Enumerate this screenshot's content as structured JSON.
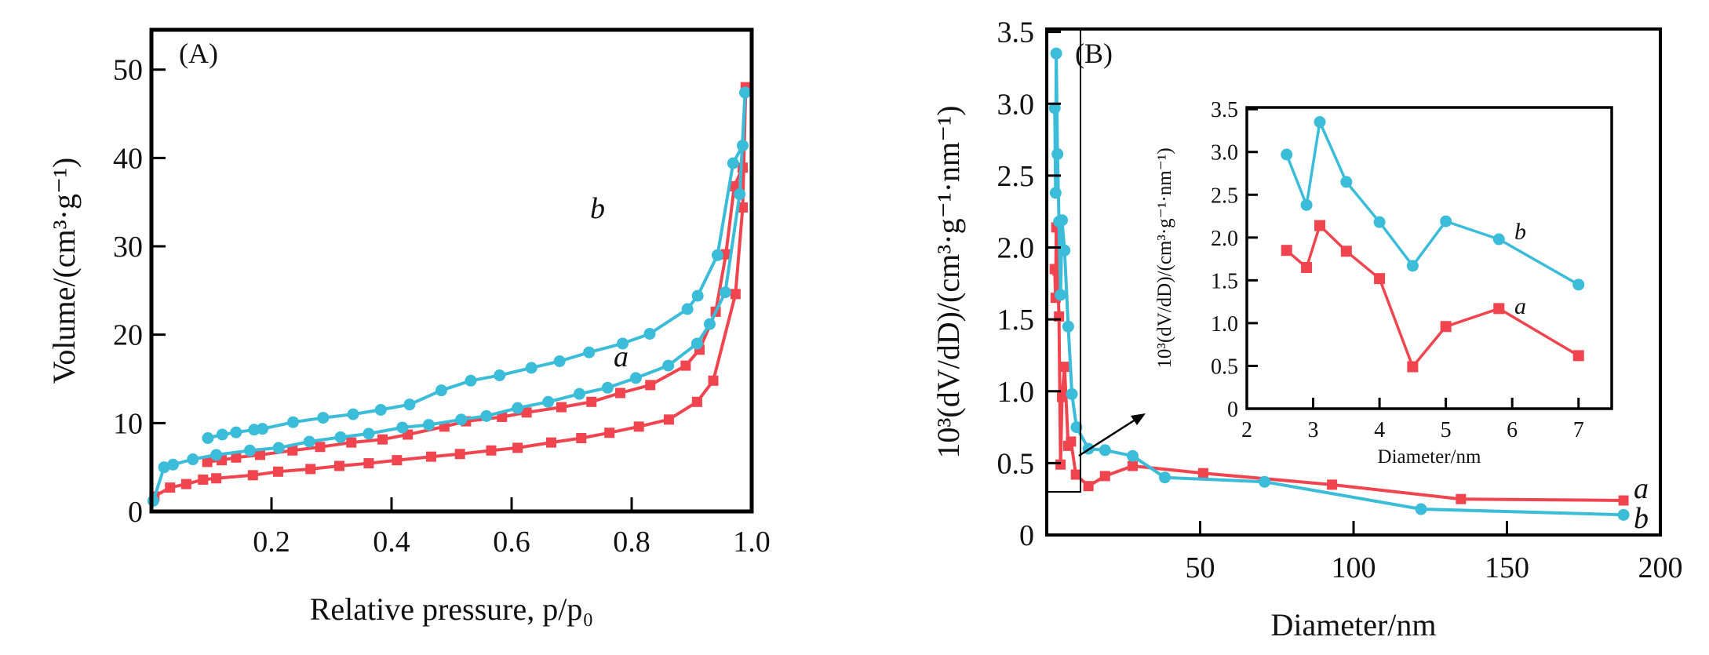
{
  "colors": {
    "a": "#f0444f",
    "b": "#3bbcd8",
    "axis": "#000000"
  },
  "chart_data": [
    {
      "panel_label": "(A)",
      "type": "line",
      "xlabel": "Relative pressure, p/p₀",
      "ylabel": "Volume/(cm³·g⁻¹)",
      "xlim": [
        0,
        1.0
      ],
      "ylim": [
        0,
        54.5
      ],
      "xticks": [
        "0.2",
        "0.4",
        "0.6",
        "0.8",
        "1.0"
      ],
      "xtick_values": [
        0.2,
        0.4,
        0.6,
        0.8,
        1.0
      ],
      "yticks": [
        "0",
        "10",
        "20",
        "30",
        "40",
        "50"
      ],
      "ytick_values": [
        0,
        10,
        20,
        30,
        40,
        50
      ],
      "grid": false,
      "curve_labels": {
        "a": "a",
        "b": "b"
      },
      "series": [
        {
          "id": "a",
          "marker": "square",
          "x": [
            0.005,
            0.031,
            0.058,
            0.086,
            0.108,
            0.169,
            0.211,
            0.265,
            0.313,
            0.362,
            0.409,
            0.466,
            0.514,
            0.566,
            0.61,
            0.666,
            0.716,
            0.763,
            0.812,
            0.862,
            0.909,
            0.936,
            0.973,
            0.985,
            0.99
          ],
          "y": [
            1.7,
            2.7,
            3.1,
            3.6,
            3.75,
            4.1,
            4.5,
            4.8,
            5.15,
            5.45,
            5.8,
            6.2,
            6.5,
            6.9,
            7.2,
            7.8,
            8.3,
            8.9,
            9.6,
            10.4,
            12.4,
            14.8,
            24.6,
            34.4,
            48.0
          ]
        },
        {
          "id": "a",
          "marker": "square",
          "x": [
            0.093,
            0.117,
            0.141,
            0.181,
            0.235,
            0.281,
            0.333,
            0.385,
            0.427,
            0.488,
            0.524,
            0.584,
            0.625,
            0.683,
            0.733,
            0.781,
            0.831,
            0.89,
            0.913,
            0.94,
            0.957,
            0.971,
            0.985,
            0.99
          ],
          "y": [
            5.6,
            5.8,
            6.1,
            6.4,
            6.9,
            7.3,
            7.8,
            8.15,
            8.7,
            9.6,
            10.2,
            10.7,
            11.2,
            11.8,
            12.4,
            13.4,
            14.3,
            16.5,
            18.3,
            22.6,
            29.1,
            36.8,
            38.9,
            48.0
          ]
        },
        {
          "id": "b",
          "marker": "circle",
          "x": [
            0.003,
            0.021,
            0.036,
            0.069,
            0.108,
            0.164,
            0.212,
            0.263,
            0.315,
            0.362,
            0.418,
            0.462,
            0.516,
            0.558,
            0.61,
            0.661,
            0.713,
            0.76,
            0.807,
            0.861,
            0.909,
            0.93,
            0.956,
            0.98,
            0.989
          ],
          "y": [
            1.2,
            5.0,
            5.3,
            5.9,
            6.4,
            6.9,
            7.2,
            7.9,
            8.4,
            8.8,
            9.5,
            9.8,
            10.4,
            10.8,
            11.7,
            12.4,
            13.3,
            14.0,
            15.1,
            16.5,
            19.0,
            21.2,
            24.8,
            35.9,
            47.4
          ]
        },
        {
          "id": "b",
          "marker": "circle",
          "x": [
            0.094,
            0.118,
            0.141,
            0.171,
            0.185,
            0.236,
            0.286,
            0.336,
            0.382,
            0.43,
            0.483,
            0.532,
            0.58,
            0.633,
            0.68,
            0.729,
            0.785,
            0.83,
            0.893,
            0.91,
            0.943,
            0.969,
            0.985,
            0.989
          ],
          "y": [
            8.3,
            8.7,
            8.95,
            9.25,
            9.35,
            10.1,
            10.6,
            11.0,
            11.5,
            12.1,
            13.7,
            14.8,
            15.4,
            16.25,
            17.0,
            18.0,
            19.0,
            20.1,
            22.9,
            24.4,
            29.0,
            39.4,
            41.4,
            47.4
          ]
        }
      ]
    },
    {
      "panel_label": "(B)",
      "type": "line",
      "xlabel": "Diameter/nm",
      "ylabel": "10³(dV/dD)/(cm³·g⁻¹·nm⁻¹)",
      "xlim": [
        0,
        200
      ],
      "ylim": [
        0,
        3.52
      ],
      "xticks": [
        "50",
        "100",
        "150",
        "200"
      ],
      "xtick_values": [
        50,
        100,
        150,
        200
      ],
      "yticks": [
        "0",
        "0.5",
        "1.0",
        "1.5",
        "2.0",
        "2.5",
        "3.0",
        "3.5"
      ],
      "ytick_values": [
        0,
        0.5,
        1.0,
        1.5,
        2.0,
        2.5,
        3.0,
        3.5
      ],
      "grid": false,
      "curve_labels": {
        "a": "a",
        "b": "b"
      },
      "zoom_box": {
        "x": [
          0,
          11
        ],
        "y": [
          0.3,
          3.52
        ]
      },
      "series": [
        {
          "id": "a",
          "marker": "square",
          "x": [
            2.6,
            2.9,
            3.1,
            3.5,
            4.0,
            4.5,
            5.0,
            5.8,
            7.0,
            7.9,
            9.5,
            13.6,
            19,
            28,
            51,
            93,
            135,
            188
          ],
          "y": [
            1.85,
            1.65,
            2.14,
            1.84,
            1.52,
            0.49,
            0.96,
            1.17,
            0.62,
            0.65,
            0.42,
            0.34,
            0.41,
            0.48,
            0.43,
            0.35,
            0.25,
            0.24
          ]
        },
        {
          "id": "b",
          "marker": "circle",
          "x": [
            2.6,
            2.9,
            3.1,
            3.5,
            4.0,
            4.5,
            5.0,
            5.8,
            7.0,
            8.2,
            9.7,
            13.6,
            19,
            28,
            38.5,
            71,
            122,
            188
          ],
          "y": [
            2.97,
            2.38,
            3.35,
            2.65,
            2.18,
            1.67,
            2.19,
            1.98,
            1.45,
            0.98,
            0.75,
            0.6,
            0.59,
            0.55,
            0.4,
            0.37,
            0.18,
            0.14
          ]
        }
      ]
    },
    {
      "panel_label": "",
      "type": "line",
      "inset_of": "(B)",
      "xlabel": "Diameter/nm",
      "ylabel": "10³(dV/dD)/(cm³·g⁻¹·nm⁻¹)",
      "xlim": [
        2,
        7.5
      ],
      "ylim": [
        0,
        3.52
      ],
      "xticks": [
        "2",
        "3",
        "4",
        "5",
        "6",
        "7"
      ],
      "xtick_values": [
        2,
        3,
        4,
        5,
        6,
        7
      ],
      "yticks": [
        "0",
        "0.5",
        "1.0",
        "1.5",
        "2.0",
        "2.5",
        "3.0",
        "3.5"
      ],
      "ytick_values": [
        0,
        0.5,
        1.0,
        1.5,
        2.0,
        2.5,
        3.0,
        3.5
      ],
      "grid": false,
      "curve_labels": {
        "a": "a",
        "b": "b"
      },
      "series": [
        {
          "id": "a",
          "marker": "square",
          "x": [
            2.6,
            2.9,
            3.1,
            3.5,
            4.0,
            4.5,
            5.0,
            5.8,
            7.0
          ],
          "y": [
            1.85,
            1.65,
            2.14,
            1.84,
            1.52,
            0.49,
            0.96,
            1.17,
            0.62
          ]
        },
        {
          "id": "b",
          "marker": "circle",
          "x": [
            2.6,
            2.9,
            3.1,
            3.5,
            4.0,
            4.5,
            5.0,
            5.8,
            7.0
          ],
          "y": [
            2.97,
            2.38,
            3.35,
            2.65,
            2.18,
            1.67,
            2.19,
            1.98,
            1.45
          ]
        }
      ]
    }
  ]
}
